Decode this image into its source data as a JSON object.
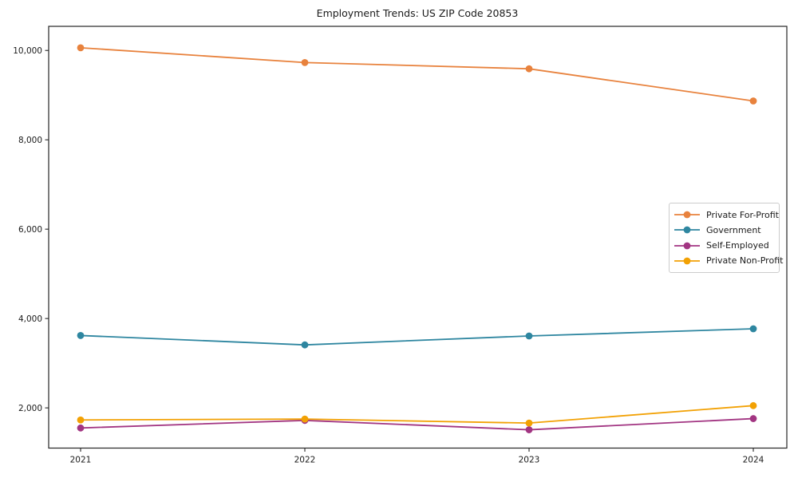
{
  "chart_data": {
    "type": "line",
    "title": "Employment Trends: US ZIP Code 20853",
    "xlabel": "",
    "ylabel": "",
    "categories": [
      "2021",
      "2022",
      "2023",
      "2024"
    ],
    "series": [
      {
        "name": "Private For-Profit",
        "color": "#E8823D",
        "values": [
          10060,
          9730,
          9590,
          8870
        ]
      },
      {
        "name": "Government",
        "color": "#2E86A0",
        "values": [
          3620,
          3410,
          3610,
          3770
        ]
      },
      {
        "name": "Self-Employed",
        "color": "#A23582",
        "values": [
          1550,
          1720,
          1510,
          1760
        ]
      },
      {
        "name": "Private Non-Profit",
        "color": "#F2A104",
        "values": [
          1730,
          1750,
          1660,
          2050
        ]
      }
    ],
    "ylim": [
      1100,
      10540
    ],
    "yticks": [
      {
        "value": 2000,
        "label": "2,000"
      },
      {
        "value": 4000,
        "label": "4,000"
      },
      {
        "value": 6000,
        "label": "6,000"
      },
      {
        "value": 8000,
        "label": "8,000"
      },
      {
        "value": 10000,
        "label": "10,000"
      }
    ],
    "grid": false,
    "legend_position": "right-middle",
    "marker": "circle",
    "frame_color": "#262626",
    "text_color": "#1a1a1a"
  }
}
